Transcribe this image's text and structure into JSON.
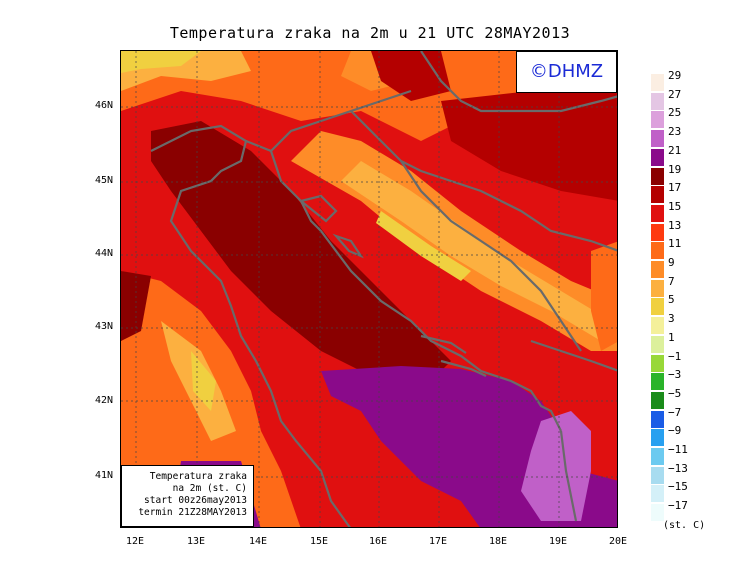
{
  "title": "Temperatura zraka na 2m u 21 UTC 28MAY2013",
  "logo": "©DHMZ",
  "info_box": {
    "line1": "Temperatura zraka",
    "line2": "na 2m (st. C)",
    "line3": "start 00z26may2013",
    "line4": "termin 21Z28MAY2013"
  },
  "axes": {
    "y_ticks": [
      "46N",
      "45N",
      "44N",
      "43N",
      "42N",
      "41N"
    ],
    "x_ticks": [
      "12E",
      "13E",
      "14E",
      "15E",
      "16E",
      "17E",
      "18E",
      "19E",
      "20E"
    ]
  },
  "legend": {
    "unit": "(st. C)",
    "labels": [
      "29",
      "27",
      "25",
      "23",
      "21",
      "19",
      "17",
      "15",
      "13",
      "11",
      "9",
      "7",
      "5",
      "3",
      "1",
      "−1",
      "−3",
      "−5",
      "−7",
      "−9",
      "−11",
      "−13",
      "−15",
      "−17"
    ],
    "colors": [
      "#fbeee2",
      "#e4c6e4",
      "#dca0dc",
      "#c060c8",
      "#8a0a8a",
      "#8a0000",
      "#b40000",
      "#e01010",
      "#fe3a10",
      "#fe6a18",
      "#fe8c28",
      "#fcb040",
      "#f0d040",
      "#f4f09a",
      "#dcf09c",
      "#98d838",
      "#2ab42a",
      "#1a8c1a",
      "#1a5ce6",
      "#28a0f0",
      "#6ccaf0",
      "#a8dcf0",
      "#d4f0f8",
      "#eefcfc"
    ]
  },
  "colors": {
    "coastline": "#6a6a6a",
    "logo_text": "#1b2bd6"
  }
}
